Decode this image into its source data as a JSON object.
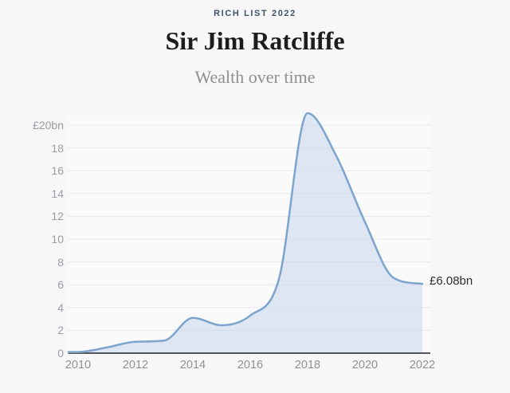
{
  "header": {
    "eyebrow": "RICH LIST 2022",
    "title": "Sir Jim Ratcliffe",
    "subtitle": "Wealth over time"
  },
  "chart_data": {
    "type": "area",
    "title": "Wealth over time",
    "series_name": "Wealth (£bn)",
    "x": [
      2010,
      2011,
      2012,
      2013,
      2014,
      2015,
      2016,
      2017,
      2018,
      2019,
      2020,
      2021,
      2022
    ],
    "values": [
      0.1,
      0.5,
      1.0,
      1.1,
      3.1,
      2.45,
      3.3,
      6.5,
      21.05,
      17.3,
      11.5,
      6.6,
      6.08
    ],
    "xlim": [
      2010,
      2022
    ],
    "ylim": [
      0,
      21.5
    ],
    "x_tick_years": [
      2010,
      2012,
      2014,
      2016,
      2018,
      2020,
      2022
    ],
    "x_tick_labels": [
      "2010",
      "2012",
      "2014",
      "2016",
      "2018",
      "2020",
      "2022"
    ],
    "y_ticks": [
      0,
      2,
      4,
      6,
      8,
      10,
      12,
      14,
      16,
      18,
      20
    ],
    "y_tick_labels": [
      "0",
      "2",
      "4",
      "6",
      "8",
      "10",
      "12",
      "14",
      "16",
      "18",
      "£20bn"
    ],
    "grid": true,
    "legend": "none",
    "annotation": {
      "text": "£6.08bn",
      "x": 2022,
      "y": 6.08
    },
    "line_color": "#7da4cc",
    "fill_color": "#c7d6ed"
  },
  "colors": {
    "page-bg": "#f7f7f8",
    "plot-bg": "#fafafb",
    "grid": "#e8e8ea",
    "axis": "#55565a",
    "eyebrow": "#3e526b",
    "title": "#1d1d1f",
    "subtitle": "#918f8c",
    "ylabel": "#9b9da3",
    "xlabel": "#8f9196",
    "annotation": "#2e2f33"
  }
}
